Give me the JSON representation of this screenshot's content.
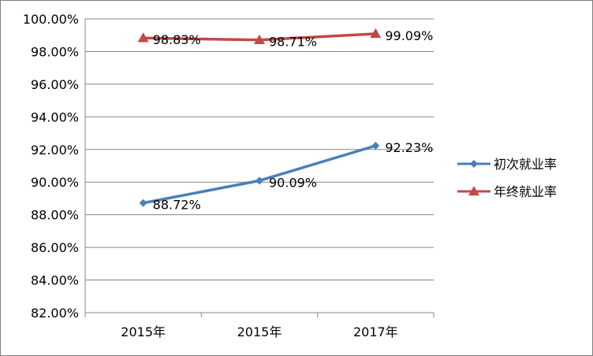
{
  "chart_data": {
    "type": "line",
    "title": "",
    "xlabel": "",
    "ylabel": "",
    "categories": [
      "2015年",
      "2015年",
      "2017年"
    ],
    "ylim": [
      82,
      100
    ],
    "ytick_step": 2,
    "ytick_labels": [
      "82.00%",
      "84.00%",
      "86.00%",
      "88.00%",
      "90.00%",
      "92.00%",
      "94.00%",
      "96.00%",
      "98.00%",
      "100.00%"
    ],
    "grid": true,
    "legend_position": "right",
    "series": [
      {
        "name": "初次就业率",
        "values": [
          88.72,
          90.09,
          92.23
        ],
        "labels": [
          "88.72%",
          "90.09%",
          "92.23%"
        ],
        "color": "#4a7ebb",
        "marker": "diamond"
      },
      {
        "name": "年终就业率",
        "values": [
          98.83,
          98.71,
          99.09
        ],
        "labels": [
          "98.83%",
          "98.71%",
          "99.09%"
        ],
        "color": "#be4b48",
        "marker": "triangle"
      }
    ]
  }
}
